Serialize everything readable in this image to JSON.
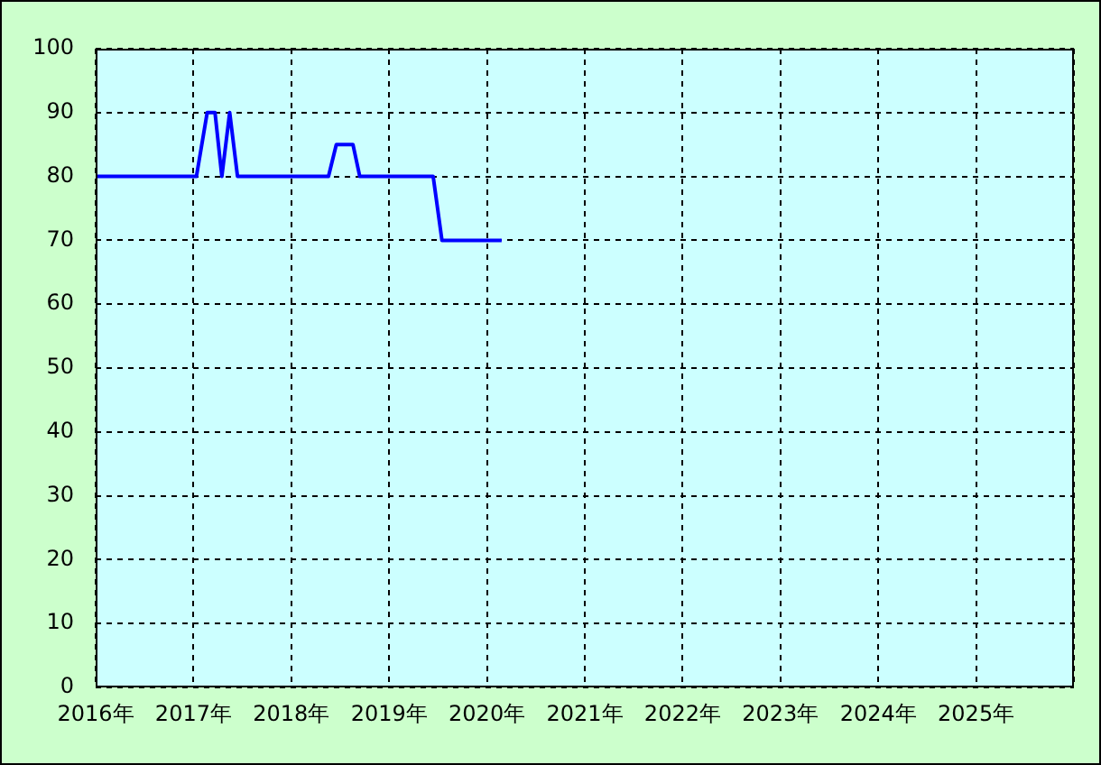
{
  "chart_data": {
    "type": "line",
    "x": [
      2016,
      2017.03,
      2017.14,
      2017.22,
      2017.29,
      2017.37,
      2017.45,
      2018.38,
      2018.46,
      2018.63,
      2018.7,
      2019.45,
      2019.54,
      2020.15
    ],
    "values": [
      80,
      80,
      90,
      90,
      80,
      90,
      80,
      80,
      85,
      85,
      80,
      80,
      70,
      70
    ],
    "color": "#0000ff",
    "xlim": [
      2016,
      2026
    ],
    "xticks": [
      {
        "value": 2016,
        "label": "2016年"
      },
      {
        "value": 2017,
        "label": "2017年"
      },
      {
        "value": 2018,
        "label": "2018年"
      },
      {
        "value": 2019,
        "label": "2019年"
      },
      {
        "value": 2020,
        "label": "2020年"
      },
      {
        "value": 2021,
        "label": "2021年"
      },
      {
        "value": 2022,
        "label": "2022年"
      },
      {
        "value": 2023,
        "label": "2023年"
      },
      {
        "value": 2024,
        "label": "2024年"
      },
      {
        "value": 2025,
        "label": "2025年"
      },
      {
        "value": 2026,
        "label": null
      }
    ],
    "ylim": [
      0,
      100
    ],
    "yticks": [
      0,
      10,
      20,
      30,
      40,
      50,
      60,
      70,
      80,
      90,
      100
    ],
    "grid": true
  }
}
